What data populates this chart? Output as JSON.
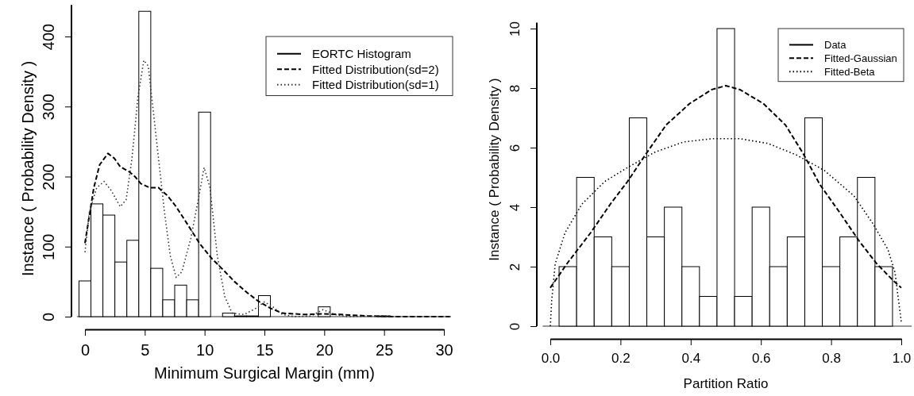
{
  "chart_data": [
    {
      "type": "histogram",
      "xlabel": "Minimum Surgical Margin (mm)",
      "ylabel": "Instance ( Probability Density )",
      "legend": "top right",
      "grid": false,
      "bins": [
        -0.5,
        0.5,
        1.5,
        2.5,
        3.5,
        4.5,
        5.5,
        6.5,
        7.5,
        8.5,
        9.5,
        10.5,
        11.5,
        12.5,
        13.5,
        14.5,
        15.5,
        16.5,
        17.5,
        18.5,
        19.5,
        20.5,
        21.5,
        22.5,
        23.5,
        24.5,
        25.5,
        26.5,
        27.5,
        28.5,
        29.5,
        30.5
      ],
      "xlim": [
        -1.2,
        30.6
      ],
      "xticks": [
        0,
        5,
        10,
        15,
        20,
        25,
        30
      ],
      "ylim": [
        0,
        445
      ],
      "yticks": [
        0,
        100,
        200,
        300,
        400
      ],
      "series": [
        {
          "name": "EORTC Histogram",
          "color": "#000000",
          "line_style": "solid",
          "values": [
            51,
            161,
            145,
            78,
            109,
            436,
            69,
            24,
            45,
            24,
            292,
            0,
            5,
            1,
            1,
            30,
            0,
            0,
            0,
            0,
            14,
            0,
            0,
            0,
            0,
            1,
            0,
            0,
            0,
            0,
            0
          ]
        },
        {
          "name": "Fitted Distribution(sd=2)",
          "type": "line",
          "color": "#000000",
          "line_style": "dashed",
          "x": [
            0,
            0.74,
            1.23,
            1.92,
            2.46,
            2.95,
            3.69,
            4.18,
            4.67,
            5.41,
            6.15,
            6.88,
            7.62,
            8.6,
            9.6,
            10.6,
            11.6,
            12.5,
            13.5,
            14.5,
            15.5,
            16.5,
            18.4,
            19.9,
            21.4,
            23.6,
            26,
            30.5
          ],
          "values": [
            105,
            184,
            217,
            233,
            226,
            214,
            207,
            200,
            190,
            184,
            184,
            173,
            157,
            131,
            104,
            83,
            66,
            50,
            35,
            22,
            12,
            5,
            3,
            4,
            3,
            1,
            0,
            0
          ]
        },
        {
          "name": "Fitted Distribution(sd=1)",
          "type": "line",
          "color": "#333333",
          "line_style": "dotted",
          "x": [
            0,
            0.37,
            0.98,
            1.6,
            2.2,
            2.95,
            3.44,
            3.93,
            4.43,
            4.92,
            5.29,
            5.9,
            6.64,
            7.13,
            7.62,
            8.1,
            8.85,
            9.47,
            9.96,
            10.45,
            11.06,
            11.68,
            12.3,
            13.3,
            14.3,
            15,
            15.7,
            16.5,
            17.5,
            18.9,
            19.9,
            20.9,
            21.9,
            24.8,
            26,
            30.5
          ],
          "values": [
            92,
            150,
            184,
            193,
            180,
            157,
            167,
            226,
            314,
            366,
            358,
            264,
            150,
            87,
            56,
            64,
            112,
            167,
            213,
            184,
            87,
            29,
            5,
            3,
            12,
            21,
            14,
            3,
            0,
            1,
            10,
            3,
            0,
            1,
            0,
            0
          ]
        }
      ]
    },
    {
      "type": "histogram",
      "xlabel": "Partition Ratio",
      "ylabel": "Instance ( Probability Density )",
      "legend": "top right",
      "grid": false,
      "bins": [
        0.025,
        0.075,
        0.125,
        0.175,
        0.225,
        0.275,
        0.325,
        0.375,
        0.425,
        0.475,
        0.525,
        0.575,
        0.625,
        0.675,
        0.725,
        0.775,
        0.825,
        0.875,
        0.925,
        0.975
      ],
      "xlim": [
        -0.04,
        1.03
      ],
      "xticks": [
        {
          "value": 0,
          "label": "0.0"
        },
        0.2,
        0.4,
        0.6,
        0.8,
        {
          "value": 1,
          "label": "1.0"
        }
      ],
      "ylim": [
        0,
        10.2
      ],
      "yticks": [
        0,
        2,
        4,
        6,
        8,
        10
      ],
      "series": [
        {
          "name": "Data",
          "color": "#000000",
          "line_style": "solid",
          "values": [
            2,
            5,
            3,
            2,
            7,
            3,
            4,
            2,
            1,
            10,
            1,
            4,
            2,
            3,
            7,
            2,
            3,
            5,
            2
          ]
        },
        {
          "name": "Fitted-Gaussian",
          "type": "line",
          "color": "#000000",
          "line_style": "dashed",
          "x": [
            0,
            0.05,
            0.115,
            0.171,
            0.22,
            0.268,
            0.33,
            0.397,
            0.46,
            0.5,
            0.54,
            0.607,
            0.67,
            0.72,
            0.768,
            0.825,
            0.88,
            0.93,
            0.978,
            1
          ],
          "values": [
            1.29,
            2.14,
            3.14,
            4.1,
            4.86,
            5.71,
            6.76,
            7.48,
            7.95,
            8.08,
            7.95,
            7.48,
            6.76,
            5.81,
            4.76,
            3.81,
            2.86,
            2.1,
            1.52,
            1.29
          ]
        },
        {
          "name": "Fitted-Beta",
          "type": "line",
          "color": "#000000",
          "line_style": "dotted",
          "x": [
            0,
            0.004,
            0.014,
            0.042,
            0.09,
            0.155,
            0.22,
            0.3,
            0.38,
            0.46,
            0.54,
            0.62,
            0.7,
            0.78,
            0.865,
            0.92,
            0.962,
            0.982,
            1
          ],
          "values": [
            0,
            0.86,
            2.1,
            3.14,
            4.1,
            4.86,
            5.33,
            5.86,
            6.19,
            6.3,
            6.3,
            6.14,
            5.76,
            5.24,
            4.38,
            3.43,
            2.57,
            1.81,
            0.14
          ]
        }
      ]
    }
  ]
}
